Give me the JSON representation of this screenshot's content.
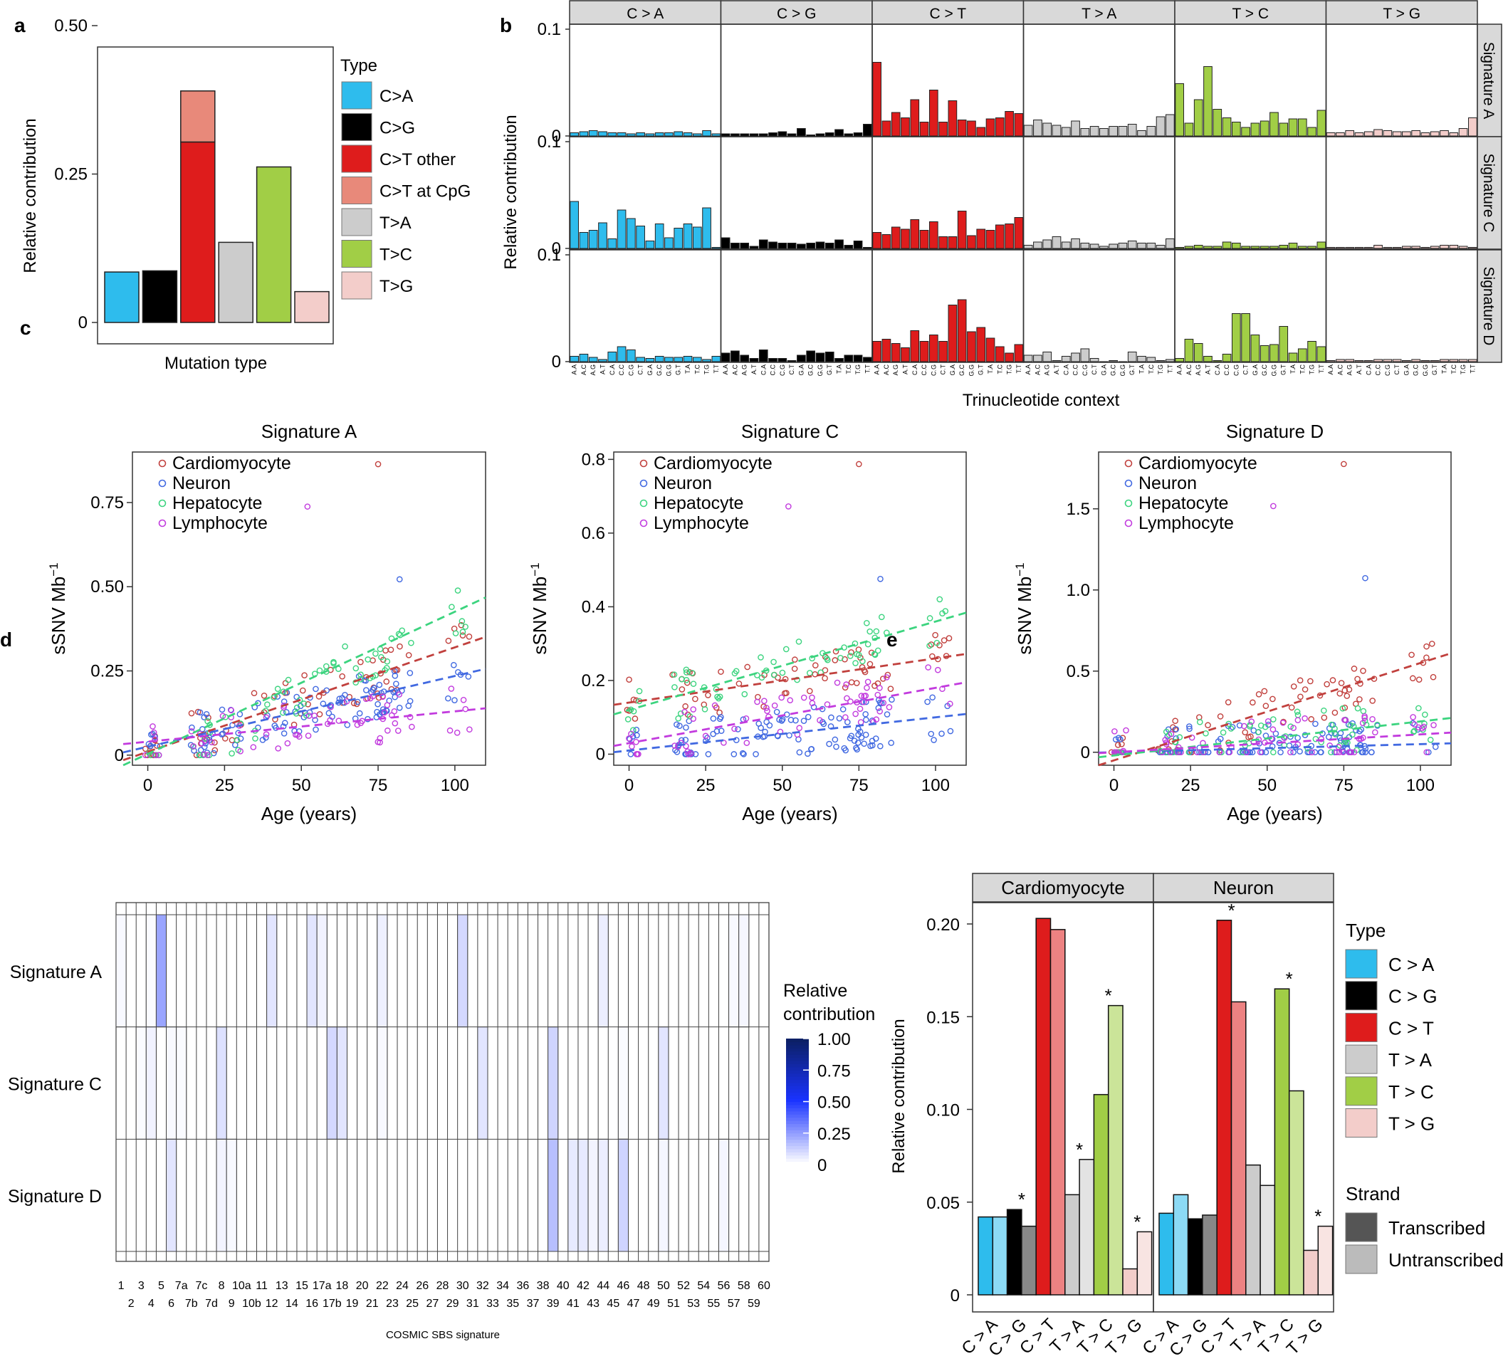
{
  "colors": {
    "CA": "#2ebced",
    "CG": "#000000",
    "CT": "#de1c1c",
    "CpG": "#e8897a",
    "TA": "#cccccc",
    "TC": "#a1ce46",
    "TG": "#f3cdca",
    "Cardiomyocyte": "#c1403d",
    "Neuron": "#4169e1",
    "Hepatocyte": "#3cd47f",
    "Lymphocyte": "#c23bde",
    "strand_dark": "#555555",
    "strand_light": "#bbbbbb"
  },
  "panel_labels": [
    "a",
    "b",
    "c",
    "d",
    "e"
  ],
  "chart_data": [
    {
      "id": "a",
      "type": "bar",
      "title": "",
      "xlabel": "Mutation type",
      "ylabel": "Relative contribution",
      "ylim": [
        0,
        0.5
      ],
      "yticks": [
        "0",
        "0.25",
        "0.50"
      ],
      "categories": [
        "C>A",
        "C>G",
        "C>T",
        "T>A",
        "T>C",
        "T>G"
      ],
      "series": [
        {
          "name": "base",
          "values": [
            0.085,
            0.087,
            0.304,
            0.135,
            0.262,
            0.052
          ],
          "colors": [
            "CA",
            "CG",
            "CT",
            "TA",
            "TC",
            "TG"
          ]
        },
        {
          "name": "C>T at CpG",
          "values": [
            0,
            0,
            0.086,
            0,
            0,
            0
          ],
          "colors": [
            "CpG",
            "CpG",
            "CpG",
            "CpG",
            "CpG",
            "CpG"
          ]
        }
      ],
      "legend": {
        "title": "Type",
        "placement": "right",
        "entries": [
          {
            "label": "C>A",
            "color": "CA"
          },
          {
            "label": "C>G",
            "color": "CG"
          },
          {
            "label": "C>T other",
            "color": "CT"
          },
          {
            "label": "C>T at CpG",
            "color": "CpG"
          },
          {
            "label": "T>A",
            "color": "TA"
          },
          {
            "label": "T>C",
            "color": "TC"
          },
          {
            "label": "T>G",
            "color": "TG"
          }
        ]
      }
    },
    {
      "id": "b",
      "type": "bar",
      "xlabel": "Trinucleotide context",
      "ylabel": "Relative contribution",
      "ylim": [
        0,
        0.1
      ],
      "yticks": [
        "0",
        "0.1"
      ],
      "mutation_types": [
        "C > A",
        "C > G",
        "C > T",
        "T > A",
        "T > C",
        "T > G"
      ],
      "type_colors": [
        "CA",
        "CG",
        "CT",
        "TA",
        "TC",
        "TG"
      ],
      "contexts": [
        "A.A",
        "A.C",
        "A.G",
        "A.T",
        "C.A",
        "C.C",
        "C.G",
        "C.T",
        "G.A",
        "G.C",
        "G.G",
        "G.T",
        "T.A",
        "T.C",
        "T.G",
        "T.T"
      ],
      "rows": [
        {
          "name": "Signature A",
          "values": [
            [
              0.003,
              0.004,
              0.005,
              0.004,
              0.003,
              0.003,
              0.002,
              0.003,
              0.002,
              0.003,
              0.003,
              0.004,
              0.003,
              0.002,
              0.005,
              0.002
            ],
            [
              0.002,
              0.002,
              0.002,
              0.002,
              0.002,
              0.003,
              0.004,
              0.002,
              0.007,
              0.001,
              0.002,
              0.003,
              0.006,
              0.002,
              0.003,
              0.011
            ],
            [
              0.069,
              0.014,
              0.022,
              0.017,
              0.034,
              0.013,
              0.043,
              0.013,
              0.033,
              0.015,
              0.014,
              0.008,
              0.016,
              0.017,
              0.023,
              0.021
            ],
            [
              0.01,
              0.015,
              0.012,
              0.01,
              0.008,
              0.014,
              0.007,
              0.009,
              0.007,
              0.009,
              0.009,
              0.011,
              0.005,
              0.009,
              0.018,
              0.02
            ],
            [
              0.049,
              0.012,
              0.034,
              0.065,
              0.025,
              0.017,
              0.013,
              0.008,
              0.012,
              0.014,
              0.022,
              0.012,
              0.016,
              0.016,
              0.008,
              0.024
            ],
            [
              0.003,
              0.003,
              0.005,
              0.003,
              0.004,
              0.006,
              0.005,
              0.004,
              0.004,
              0.005,
              0.003,
              0.004,
              0.005,
              0.003,
              0.007,
              0.017
            ]
          ]
        },
        {
          "name": "Signature C",
          "values": [
            [
              0.044,
              0.015,
              0.017,
              0.024,
              0.009,
              0.036,
              0.028,
              0.021,
              0.007,
              0.023,
              0.01,
              0.019,
              0.023,
              0.02,
              0.038,
              0.001
            ],
            [
              0.01,
              0.005,
              0.005,
              0.002,
              0.008,
              0.006,
              0.005,
              0.005,
              0.004,
              0.005,
              0.006,
              0.005,
              0.008,
              0.003,
              0.007,
              0.001
            ],
            [
              0.015,
              0.013,
              0.02,
              0.018,
              0.027,
              0.017,
              0.025,
              0.011,
              0.011,
              0.035,
              0.012,
              0.018,
              0.017,
              0.022,
              0.023,
              0.029
            ],
            [
              0.003,
              0.006,
              0.008,
              0.011,
              0.006,
              0.009,
              0.005,
              0.004,
              0.002,
              0.004,
              0.005,
              0.007,
              0.005,
              0.005,
              0.003,
              0.009
            ],
            [
              0.001,
              0.002,
              0.003,
              0.002,
              0.002,
              0.006,
              0.005,
              0.002,
              0.002,
              0.002,
              0.002,
              0.003,
              0.005,
              0.002,
              0.002,
              0.006
            ],
            [
              0.001,
              0.001,
              0.001,
              0.001,
              0.001,
              0.003,
              0.001,
              0.001,
              0.002,
              0.002,
              0.001,
              0.002,
              0.003,
              0.003,
              0.002,
              0.001
            ]
          ]
        },
        {
          "name": "Signature D",
          "values": [
            [
              0.005,
              0.007,
              0.004,
              0.002,
              0.009,
              0.014,
              0.011,
              0.004,
              0.003,
              0.005,
              0.004,
              0.004,
              0.005,
              0.004,
              0.002,
              0.005
            ],
            [
              0.008,
              0.01,
              0.006,
              0.003,
              0.011,
              0.003,
              0.003,
              0.001,
              0.006,
              0.01,
              0.008,
              0.009,
              0.003,
              0.006,
              0.006,
              0.004
            ],
            [
              0.019,
              0.021,
              0.017,
              0.013,
              0.029,
              0.019,
              0.025,
              0.019,
              0.053,
              0.058,
              0.028,
              0.032,
              0.022,
              0.014,
              0.008,
              0.016
            ],
            [
              0.006,
              0.006,
              0.009,
              0.001,
              0.005,
              0.008,
              0.012,
              0.003,
              0.0,
              0.001,
              0.0,
              0.009,
              0.005,
              0.004,
              0.001,
              0.002
            ],
            [
              0.003,
              0.021,
              0.017,
              0.005,
              0.001,
              0.007,
              0.045,
              0.045,
              0.025,
              0.015,
              0.016,
              0.033,
              0.008,
              0.012,
              0.019,
              0.014
            ],
            [
              0.001,
              0.002,
              0.002,
              0.001,
              0.001,
              0.002,
              0.002,
              0.002,
              0.001,
              0.002,
              0.001,
              0.001,
              0.002,
              0.002,
              0.002,
              0.002
            ]
          ]
        }
      ]
    },
    {
      "id": "c",
      "type": "scatter",
      "xlabel": "Age (years)",
      "ylabel": "sSNV Mb",
      "ylabel_sup": "−1",
      "legend": [
        "Cardiomyocyte",
        "Neuron",
        "Hepatocyte",
        "Lymphocyte"
      ],
      "xticks": [
        "0",
        "25",
        "50",
        "75",
        "100"
      ],
      "panels": [
        {
          "title": "Signature A",
          "xlim": [
            -5,
            110
          ],
          "ylim": [
            -0.03,
            0.9
          ],
          "yticks": [
            "0",
            "0.25",
            "0.50",
            "0.75"
          ],
          "ytick_values": [
            0,
            0.25,
            0.5,
            0.75
          ],
          "trend_end": [
            -8,
            110
          ],
          "trend": {
            "Cardiomyocyte": [
              0.01,
              0.0031
            ],
            "Neuron": [
              0.025,
              0.0021
            ],
            "Hepatocyte": [
              -0.06,
              0.0048
            ],
            "Lymphocyte": [
              0.04,
              0.0009
            ]
          }
        },
        {
          "title": "Signature C",
          "xlim": [
            -5,
            110
          ],
          "ylim": [
            -0.03,
            0.82
          ],
          "yticks": [
            "0",
            "0.2",
            "0.4",
            "0.6",
            "0.8"
          ],
          "ytick_values": [
            0,
            0.2,
            0.4,
            0.6,
            0.8
          ],
          "trend_end": [
            -5,
            110
          ],
          "trend": {
            "Cardiomyocyte": [
              0.14,
              0.0012
            ],
            "Neuron": [
              0.01,
              0.0009
            ],
            "Hepatocyte": [
              0.12,
              0.0024
            ],
            "Lymphocyte": [
              0.03,
              0.0015
            ]
          }
        },
        {
          "title": "Signature D",
          "xlim": [
            -5,
            110
          ],
          "ylim": [
            -0.08,
            1.85
          ],
          "yticks": [
            "0",
            "0.5",
            "1.0",
            "1.5"
          ],
          "ytick_values": [
            0,
            0.5,
            1.0,
            1.5
          ],
          "trend_end": [
            -5,
            110
          ],
          "trend": {
            "Cardiomyocyte": [
              -0.05,
              0.006
            ],
            "Neuron": [
              0.0,
              0.0005
            ],
            "Hepatocyte": [
              -0.02,
              0.0021
            ],
            "Lymphocyte": [
              0.0,
              0.0011
            ]
          }
        }
      ]
    },
    {
      "id": "d",
      "type": "heatmap",
      "xlabel": "COSMIC SBS signature",
      "rows": [
        "Signature A",
        "Signature C",
        "Signature D"
      ],
      "columns": [
        "1",
        "2",
        "3",
        "4",
        "5",
        "6",
        "7a",
        "7b",
        "7c",
        "7d",
        "8",
        "9",
        "10a",
        "10b",
        "11",
        "12",
        "13",
        "14",
        "15",
        "16",
        "17a",
        "17b",
        "18",
        "19",
        "20",
        "21",
        "22",
        "23",
        "24",
        "25",
        "26",
        "27",
        "28",
        "29",
        "30",
        "31",
        "32",
        "33",
        "34",
        "35",
        "36",
        "37",
        "38",
        "39",
        "40",
        "41",
        "42",
        "43",
        "44",
        "45",
        "46",
        "47",
        "48",
        "49",
        "50",
        "51",
        "52",
        "53",
        "54",
        "55",
        "56",
        "57",
        "58",
        "59",
        "60"
      ],
      "values": [
        [
          0.03,
          0,
          0,
          0.02,
          0.42,
          0,
          0,
          0,
          0,
          0,
          0,
          0,
          0,
          0,
          0,
          0.12,
          0,
          0,
          0,
          0.12,
          0.06,
          0,
          0,
          0,
          0,
          0,
          0.07,
          0,
          0,
          0,
          0,
          0,
          0,
          0,
          0.18,
          0,
          0,
          0,
          0,
          0,
          0,
          0,
          0,
          0,
          0,
          0,
          0,
          0,
          0.08,
          0,
          0,
          0,
          0,
          0,
          0,
          0,
          0,
          0,
          0,
          0,
          0,
          0.03,
          0.04,
          0,
          0
        ],
        [
          0,
          0,
          0.02,
          0.06,
          0,
          0.03,
          0.02,
          0,
          0,
          0,
          0.14,
          0,
          0,
          0,
          0,
          0,
          0,
          0,
          0,
          0,
          0,
          0.18,
          0.12,
          0,
          0,
          0,
          0.03,
          0,
          0,
          0,
          0,
          0,
          0,
          0,
          0,
          0,
          0.12,
          0,
          0,
          0,
          0,
          0,
          0,
          0.2,
          0,
          0,
          0,
          0,
          0,
          0,
          0.02,
          0,
          0,
          0,
          0.12,
          0,
          0,
          0,
          0,
          0,
          0,
          0,
          0,
          0,
          0
        ],
        [
          0,
          0,
          0,
          0,
          0,
          0.12,
          0,
          0,
          0,
          0,
          0.05,
          0.03,
          0,
          0,
          0,
          0,
          0,
          0,
          0,
          0,
          0,
          0,
          0,
          0,
          0,
          0,
          0,
          0,
          0,
          0,
          0,
          0,
          0,
          0,
          0,
          0,
          0,
          0,
          0,
          0,
          0,
          0,
          0,
          0.3,
          0,
          0.1,
          0.1,
          0.05,
          0.08,
          0,
          0.2,
          0,
          0,
          0,
          0.04,
          0,
          0,
          0,
          0,
          0,
          0.04,
          0,
          0,
          0,
          0
        ]
      ],
      "colorbar": {
        "title_lines": [
          "Relative",
          "contribution"
        ],
        "ticks": [
          "1.00",
          "0.75",
          "0.50",
          "0.25",
          "0"
        ],
        "tick_values": [
          1,
          0.75,
          0.5,
          0.25,
          0
        ]
      }
    },
    {
      "id": "e",
      "type": "bar",
      "ylabel": "Relative contribution",
      "ylim": [
        0,
        0.21
      ],
      "yticks": [
        "0",
        "0.05",
        "0.10",
        "0.15",
        "0.20"
      ],
      "ytick_values": [
        0,
        0.05,
        0.1,
        0.15,
        0.2
      ],
      "categories": [
        "C > A",
        "C > G",
        "C > T",
        "T > A",
        "T > C",
        "T > G"
      ],
      "facets": [
        {
          "name": "Cardiomyocyte",
          "transcribed": [
            0.042,
            0.046,
            0.203,
            0.054,
            0.108,
            0.014
          ],
          "untranscribed": [
            0.042,
            0.037,
            0.197,
            0.073,
            0.156,
            0.034
          ],
          "star": [
            false,
            true,
            false,
            true,
            true,
            true
          ]
        },
        {
          "name": "Neuron",
          "transcribed": [
            0.044,
            0.041,
            0.202,
            0.07,
            0.165,
            0.024
          ],
          "untranscribed": [
            0.054,
            0.043,
            0.158,
            0.059,
            0.11,
            0.037
          ],
          "star": [
            false,
            false,
            true,
            false,
            true,
            true
          ]
        }
      ],
      "legend": {
        "type_title": "Type",
        "strand_title": "Strand",
        "type_entries": [
          "C > A",
          "C > G",
          "C > T",
          "T > A",
          "T > C",
          "T > G"
        ],
        "strand_entries": [
          "Transcribed",
          "Untranscribed"
        ]
      },
      "star_symbol": "*"
    }
  ]
}
